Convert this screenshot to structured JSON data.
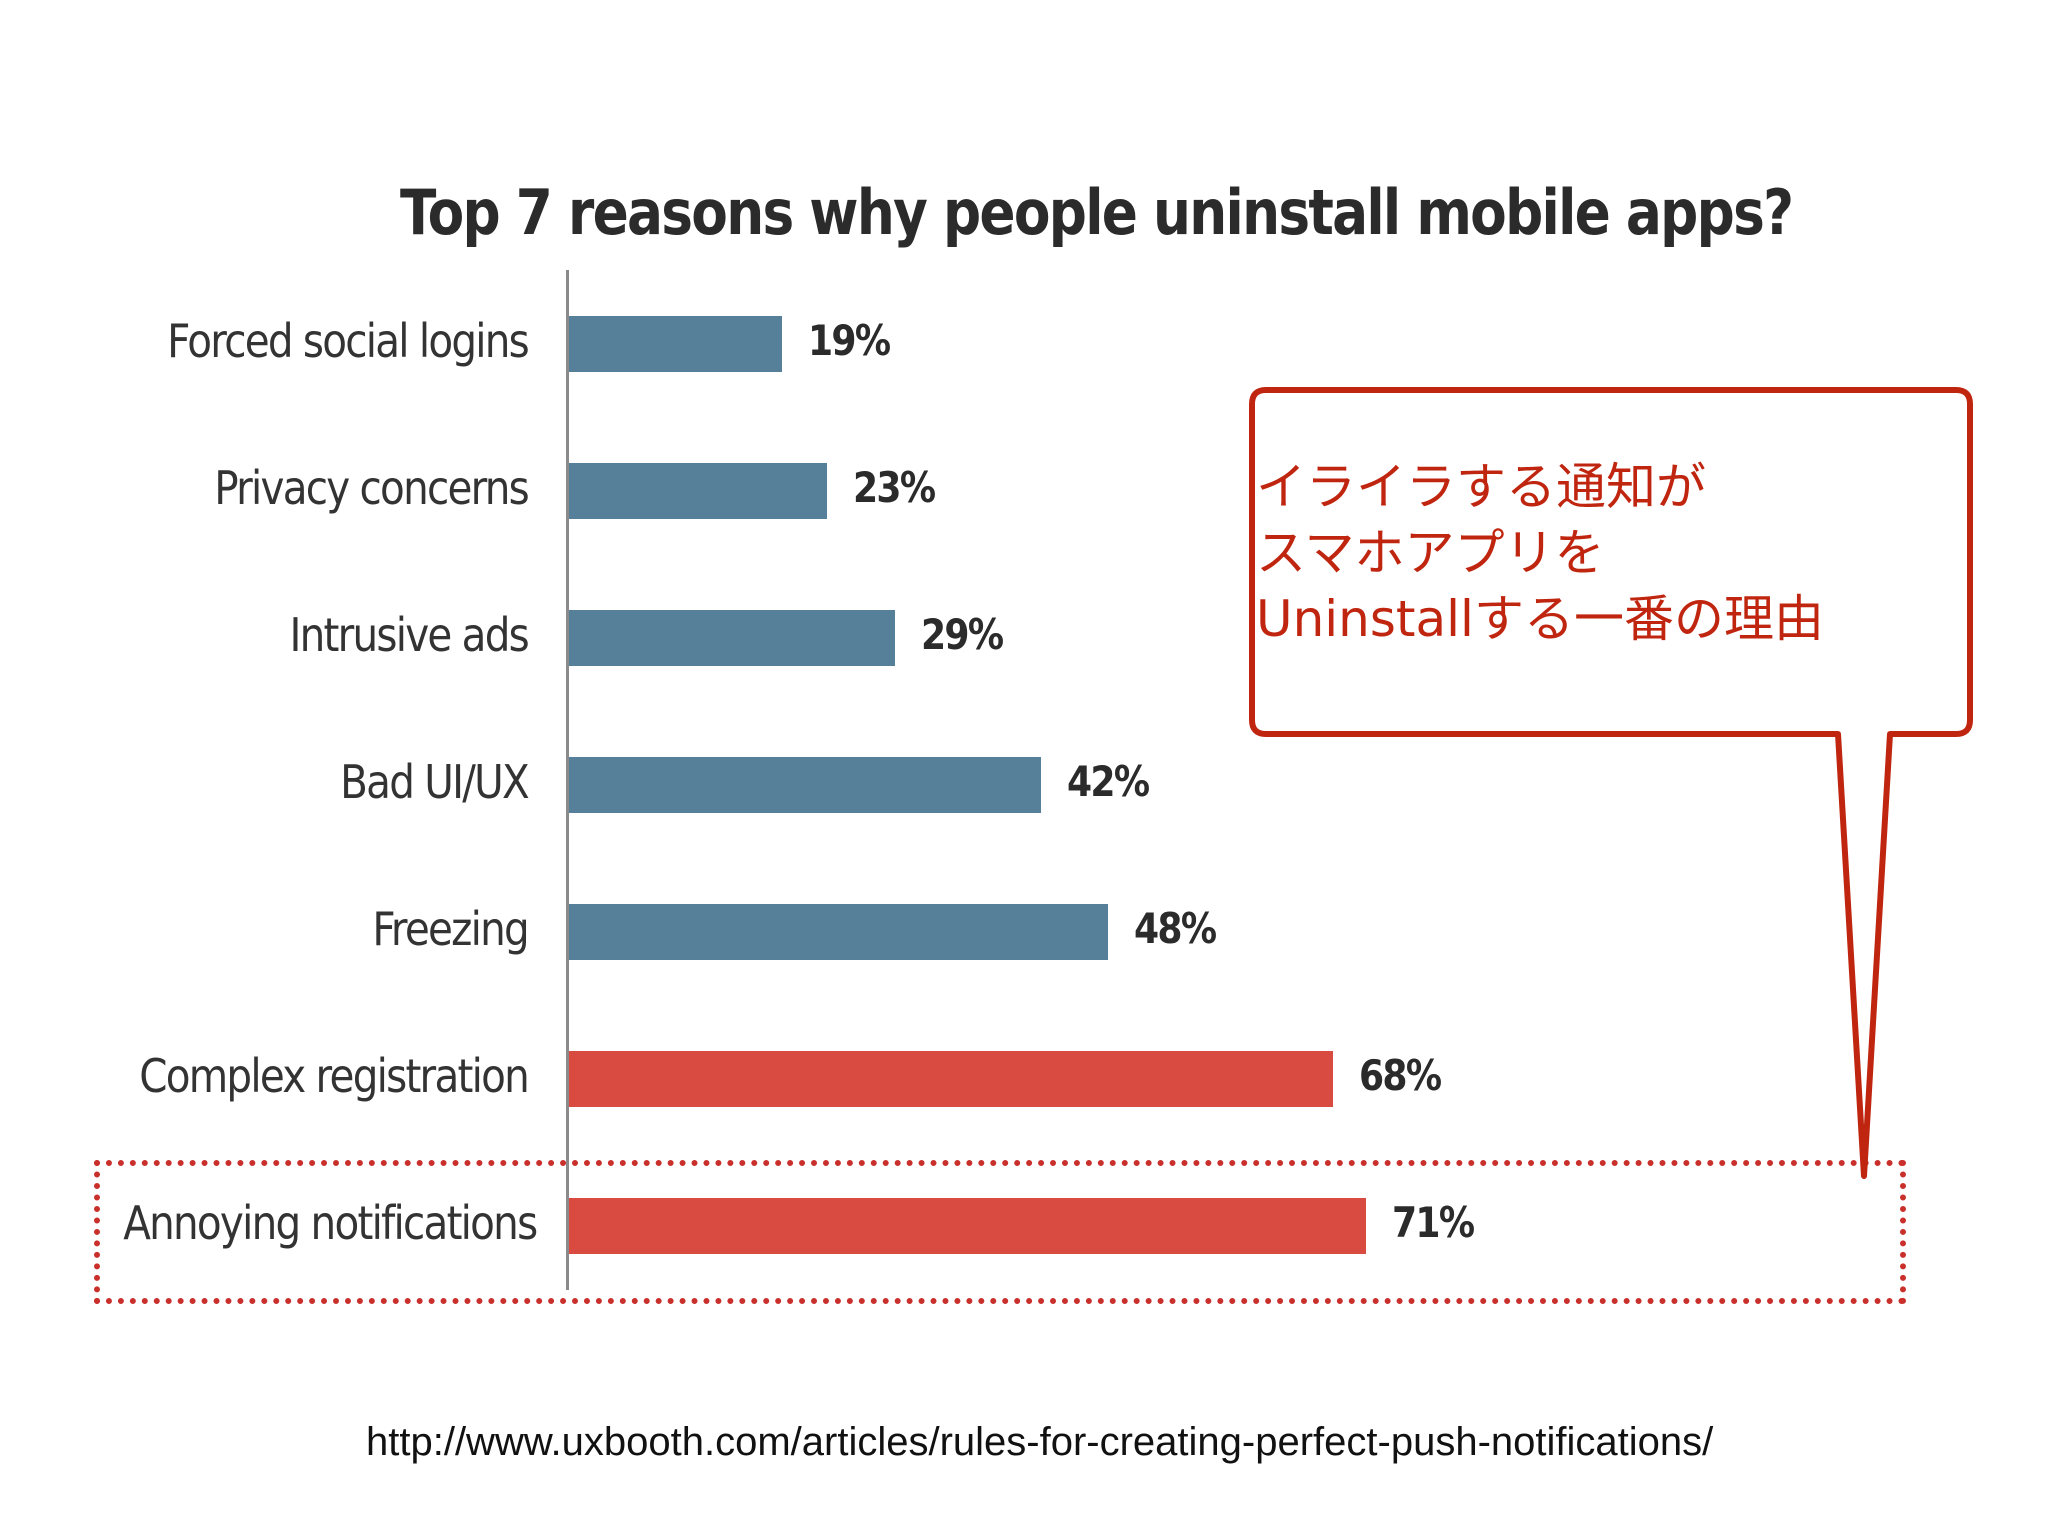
{
  "chart_data": {
    "type": "bar",
    "orientation": "horizontal",
    "title": "Top 7 reasons why people uninstall mobile apps?",
    "categories": [
      "Forced social logins",
      "Privacy concerns",
      "Intrusive ads",
      "Bad UI/UX",
      "Freezing",
      "Complex registration",
      "Annoying notifications"
    ],
    "values": [
      19,
      23,
      29,
      42,
      48,
      68,
      71
    ],
    "value_labels": [
      "19%",
      "23%",
      "29%",
      "42%",
      "48%",
      "68%",
      "71%"
    ],
    "xlim": [
      0,
      100
    ],
    "grid": false,
    "colors": [
      "#56809a",
      "#56809a",
      "#56809a",
      "#56809a",
      "#56809a",
      "#d94b40",
      "#d94b40"
    ]
  },
  "callout": {
    "lines": [
      "イライラする通知が",
      "スマホアプリを",
      "Uninstallする一番の理由"
    ],
    "color": "#c0260f"
  },
  "source_url": "http://www.uxbooth.com/articles/rules-for-creating-perfect-push-notifications/"
}
